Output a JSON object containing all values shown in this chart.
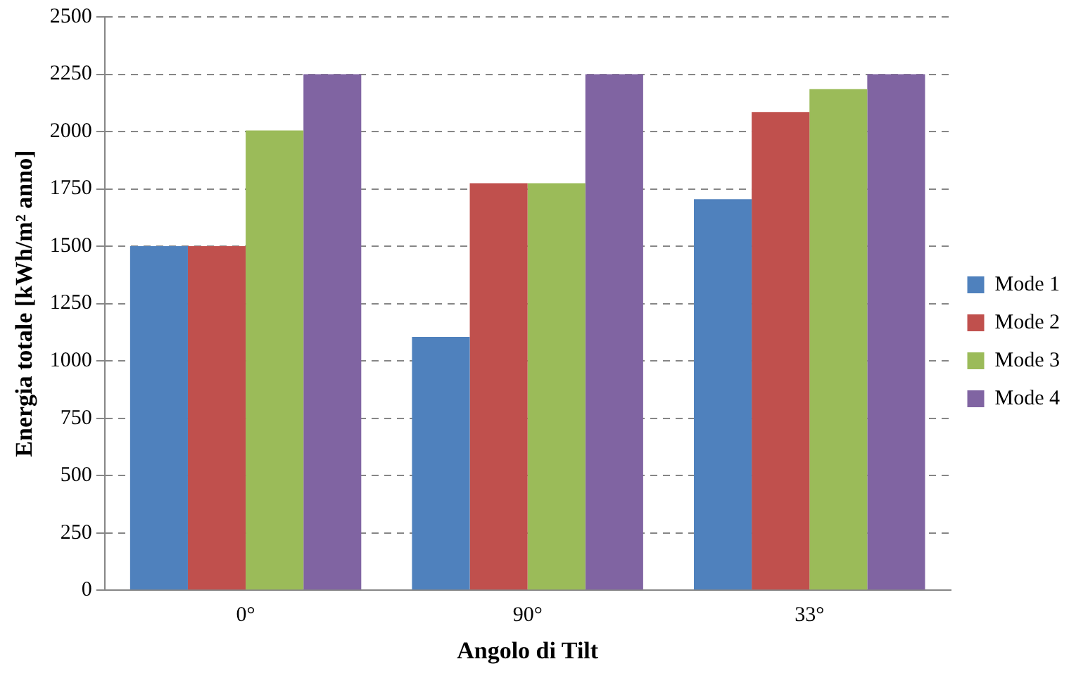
{
  "chart_data": {
    "type": "bar",
    "xlabel": "Angolo di Tilt",
    "ylabel": "Energia totale [kWh/m² anno]",
    "categories": [
      "0°",
      "90°",
      "33°"
    ],
    "series": [
      {
        "name": "Mode 1",
        "color": "#4f81bd",
        "values": [
          1500,
          1105,
          1705
        ]
      },
      {
        "name": "Mode 2",
        "color": "#c0504d",
        "values": [
          1500,
          1775,
          2085
        ]
      },
      {
        "name": "Mode 3",
        "color": "#9bbb59",
        "values": [
          2005,
          1775,
          2185
        ]
      },
      {
        "name": "Mode 4",
        "color": "#8064a2",
        "values": [
          2250,
          2250,
          2250
        ]
      }
    ],
    "ylim": [
      0,
      2500
    ],
    "yticks": [
      0,
      250,
      500,
      750,
      1000,
      1250,
      1500,
      1750,
      2000,
      2250,
      2500
    ],
    "grid": "y",
    "legend": "right"
  }
}
